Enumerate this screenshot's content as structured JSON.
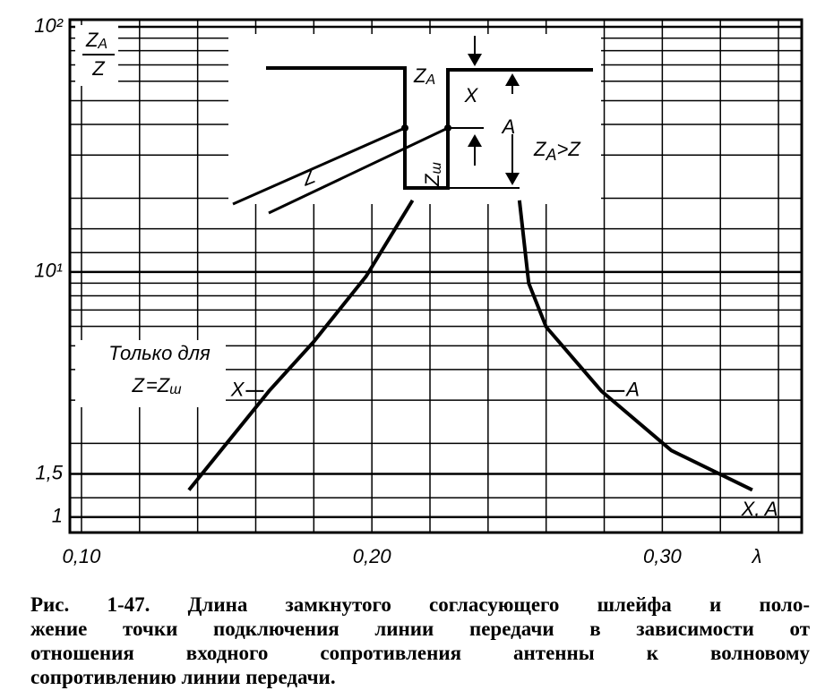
{
  "chart_data": {
    "type": "line",
    "y_label": {
      "num": "Z",
      "num_sub": "A",
      "den": "Z"
    },
    "x_label": "λ",
    "xlim": [
      0.096,
      0.348
    ],
    "ylim": [
      0.865,
      107
    ],
    "log_y": true,
    "xticks": [
      {
        "value": 0.1,
        "label": "0,10"
      },
      {
        "value": 0.2,
        "label": "0,20"
      },
      {
        "value": 0.3,
        "label": "0,30"
      }
    ],
    "yticks": [
      1,
      {
        "value": 1.5,
        "label": "1,5"
      },
      {
        "value": 10,
        "label": "10¹"
      },
      {
        "value": 100,
        "label": "10²"
      }
    ],
    "grid": true,
    "xgrid": [
      0.12,
      0.14,
      0.16,
      0.18,
      0.22,
      0.24,
      0.26,
      0.28,
      0.32,
      0.34
    ],
    "ygrid": [
      1.2,
      2,
      3,
      4,
      5,
      6,
      7,
      8,
      9,
      12,
      15,
      20,
      30,
      40,
      50,
      60,
      70,
      80,
      90
    ],
    "color": "#000000",
    "series": [
      {
        "name": "X",
        "x": [
          0.137,
          0.15,
          0.1646,
          0.18,
          0.198,
          0.214
        ],
        "y": [
          1.29,
          2.0,
          3.27,
          5.2,
          9.6,
          19.6
        ]
      },
      {
        "name": "A",
        "x": [
          0.2508,
          0.254,
          0.26,
          0.279,
          0.3031,
          0.331
        ],
        "y": [
          19.6,
          9.0,
          5.97,
          3.27,
          1.87,
          1.29
        ]
      }
    ],
    "curve_note": "X, A",
    "note_box": {
      "line1": "Только для",
      "lhs": "Z",
      "eq": "=",
      "rhs": "Z",
      "rhs_sub": "ш"
    },
    "inset": {
      "za": "Z",
      "za_sub": "A",
      "x": "X",
      "a": "A",
      "cond": "Z",
      "cond_sub": "A",
      "cond_rest": ">Z",
      "line": "Z",
      "stub": "Z",
      "stub_sub": "ш"
    }
  },
  "caption": {
    "lines": [
      "Рис. 1-47. Длина замкнутого согласующего шлейфа и поло-",
      "жение точки подключения линии передачи в зависимости от",
      "отношения входного сопротивления антенны к волновому",
      "сопротивлению линии передачи."
    ]
  }
}
